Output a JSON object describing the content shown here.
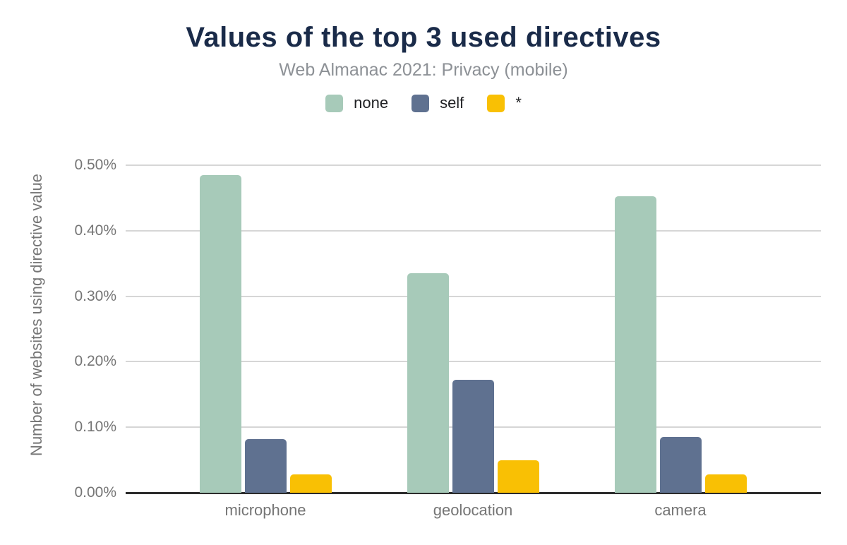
{
  "chart_data": {
    "type": "bar",
    "title": "Values of the top 3 used directives",
    "subtitle": "Web Almanac 2021: Privacy (mobile)",
    "categories": [
      "microphone",
      "geolocation",
      "camera"
    ],
    "series": [
      {
        "name": "none",
        "color": "#a7cab9",
        "values": [
          0.485,
          0.335,
          0.453
        ]
      },
      {
        "name": "self",
        "color": "#5f7190",
        "values": [
          0.082,
          0.172,
          0.085
        ]
      },
      {
        "name": "*",
        "color": "#f9c004",
        "values": [
          0.028,
          0.05,
          0.028
        ]
      }
    ],
    "ylabel": "Number of websites using directive value",
    "xlabel": "",
    "ylim": [
      0,
      0.5
    ],
    "yticks": [
      "0.00%",
      "0.10%",
      "0.20%",
      "0.30%",
      "0.40%",
      "0.50%"
    ],
    "grid": true,
    "legend_position": "top",
    "colors": {
      "title": "#1a2b49",
      "subtitle": "#8d9196",
      "axis_text": "#757575",
      "gridline": "#d6d6d6",
      "axis_line": "#2b2b2b",
      "background": "#ffffff"
    }
  }
}
